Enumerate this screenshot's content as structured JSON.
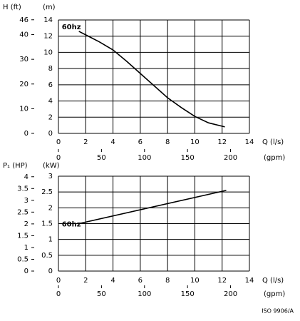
{
  "chart_data": [
    {
      "type": "line",
      "y_label": "H (ft)",
      "y_unit_label": "(m)",
      "x_label": "Q (l/s)",
      "x2_label": "(gpm)",
      "x": [
        1.5,
        3,
        4,
        5,
        6,
        7,
        8,
        9,
        10,
        11,
        12.2
      ],
      "series": [
        {
          "name": "60hz",
          "color": "#000000",
          "values": [
            12.6,
            11.3,
            10.3,
            8.9,
            7.4,
            5.9,
            4.4,
            3.2,
            2.1,
            1.3,
            0.8
          ]
        }
      ],
      "xlim": [
        0,
        14
      ],
      "xticks": [
        0,
        2,
        4,
        6,
        8,
        10,
        12,
        14
      ],
      "x2lim": [
        0,
        221.9
      ],
      "x2ticks": [
        0,
        50,
        100,
        150,
        200
      ],
      "ylim": [
        0,
        14
      ],
      "yticks": [
        0,
        2,
        4,
        6,
        8,
        10,
        12,
        14
      ],
      "y2lim": [
        0,
        45.93
      ],
      "y2ticks": [
        0,
        10,
        20,
        30,
        40,
        46
      ],
      "grid": true
    },
    {
      "type": "line",
      "y_label": "P₁ (HP)",
      "y_unit_label": "(kW)",
      "x_label": "Q (l/s)",
      "x2_label": "(gpm)",
      "x": [
        1.5,
        12.3
      ],
      "series": [
        {
          "name": "60hz",
          "color": "#000000",
          "values": [
            1.5,
            2.55
          ]
        }
      ],
      "xlim": [
        0,
        14
      ],
      "xticks": [
        0,
        2,
        4,
        6,
        8,
        10,
        12,
        14
      ],
      "x2lim": [
        0,
        221.9
      ],
      "x2ticks": [
        0,
        50,
        100,
        150,
        200
      ],
      "ylim": [
        0,
        3
      ],
      "yticks": [
        0,
        0.5,
        1,
        1.5,
        2,
        2.5,
        3
      ],
      "y2lim": [
        0,
        4.023
      ],
      "y2ticks": [
        0,
        0.5,
        1,
        1.5,
        2,
        2.5,
        3,
        3.5,
        4
      ],
      "grid": true
    }
  ],
  "note": "ISO 9906/A"
}
